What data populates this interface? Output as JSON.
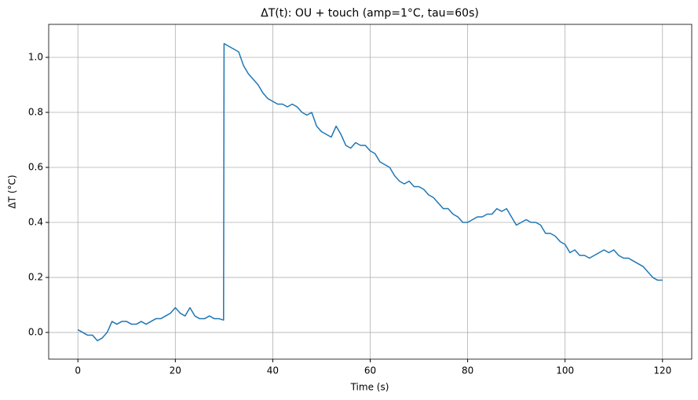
{
  "chart_data": {
    "type": "line",
    "title": "ΔT(t): OU + touch (amp=1°C, tau=60s)",
    "x_label": "Time (s)",
    "y_label": "ΔT (°C)",
    "x": [
      0,
      1,
      2,
      3,
      4,
      5,
      6,
      7,
      8,
      9,
      10,
      11,
      12,
      13,
      14,
      15,
      16,
      17,
      18,
      19,
      20,
      21,
      22,
      23,
      24,
      25,
      26,
      27,
      28,
      29,
      29.9,
      30,
      31,
      32,
      33,
      34,
      35,
      36,
      37,
      38,
      39,
      40,
      41,
      42,
      43,
      44,
      45,
      46,
      47,
      48,
      49,
      50,
      51,
      52,
      53,
      54,
      55,
      56,
      57,
      58,
      59,
      60,
      61,
      62,
      63,
      64,
      65,
      66,
      67,
      68,
      69,
      70,
      71,
      72,
      73,
      74,
      75,
      76,
      77,
      78,
      79,
      80,
      81,
      82,
      83,
      84,
      85,
      86,
      87,
      88,
      89,
      90,
      91,
      92,
      93,
      94,
      95,
      96,
      97,
      98,
      99,
      100,
      101,
      102,
      103,
      104,
      105,
      106,
      107,
      108,
      109,
      110,
      111,
      112,
      113,
      114,
      115,
      116,
      117,
      118,
      119,
      120
    ],
    "values": [
      0.01,
      0.0,
      -0.01,
      -0.01,
      -0.03,
      -0.02,
      0.0,
      0.04,
      0.03,
      0.04,
      0.04,
      0.03,
      0.03,
      0.04,
      0.03,
      0.04,
      0.05,
      0.05,
      0.06,
      0.07,
      0.09,
      0.07,
      0.06,
      0.09,
      0.06,
      0.05,
      0.05,
      0.06,
      0.05,
      0.05,
      0.045,
      1.05,
      1.04,
      1.03,
      1.02,
      0.97,
      0.94,
      0.92,
      0.9,
      0.87,
      0.85,
      0.84,
      0.83,
      0.83,
      0.82,
      0.83,
      0.82,
      0.8,
      0.79,
      0.8,
      0.75,
      0.73,
      0.72,
      0.71,
      0.75,
      0.72,
      0.68,
      0.67,
      0.69,
      0.68,
      0.68,
      0.66,
      0.65,
      0.62,
      0.61,
      0.6,
      0.57,
      0.55,
      0.54,
      0.55,
      0.53,
      0.53,
      0.52,
      0.5,
      0.49,
      0.47,
      0.45,
      0.45,
      0.43,
      0.42,
      0.4,
      0.4,
      0.41,
      0.42,
      0.42,
      0.43,
      0.43,
      0.45,
      0.44,
      0.45,
      0.42,
      0.39,
      0.4,
      0.41,
      0.4,
      0.4,
      0.39,
      0.36,
      0.36,
      0.35,
      0.33,
      0.32,
      0.29,
      0.3,
      0.28,
      0.28,
      0.27,
      0.28,
      0.29,
      0.3,
      0.29,
      0.3,
      0.28,
      0.27,
      0.27,
      0.26,
      0.25,
      0.24,
      0.22,
      0.2,
      0.19,
      0.19
    ],
    "color": "#1f77b4",
    "xlim": [
      -6,
      126
    ],
    "ylim": [
      -0.097,
      1.12
    ],
    "xticks": [
      0,
      20,
      40,
      60,
      80,
      100,
      120
    ],
    "yticks": [
      {
        "value": 0,
        "label": "0.0"
      },
      0.2,
      0.4,
      0.6,
      0.8,
      {
        "value": 1,
        "label": "1.0"
      }
    ],
    "grid": true
  }
}
